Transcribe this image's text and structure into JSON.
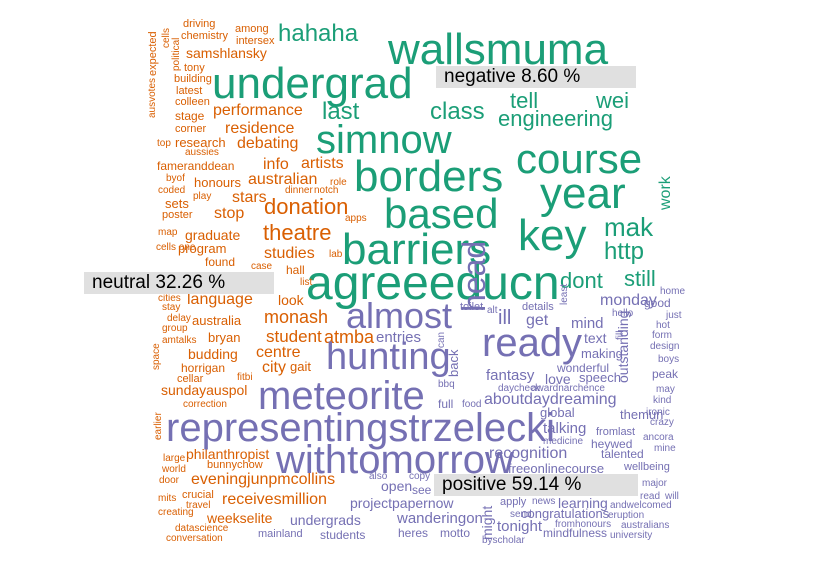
{
  "colors": {
    "negative": "#1b9e77",
    "neutral": "#d95f02",
    "positive": "#7570b3",
    "label_bg": "#e0e0e0"
  },
  "labels": {
    "negative": "negative 8.60 %",
    "neutral": "neutral 32.26 %",
    "positive": "positive 59.14 %"
  },
  "words": [
    {
      "t": "wallsmuma",
      "g": "negative"
    },
    {
      "t": "undergrad",
      "g": "negative"
    },
    {
      "t": "hahaha",
      "g": "negative"
    },
    {
      "t": "simnow",
      "g": "negative"
    },
    {
      "t": "borders",
      "g": "negative"
    },
    {
      "t": "course",
      "g": "negative"
    },
    {
      "t": "year",
      "g": "negative"
    },
    {
      "t": "based",
      "g": "negative"
    },
    {
      "t": "key",
      "g": "negative"
    },
    {
      "t": "barriers",
      "g": "negative"
    },
    {
      "t": "agreeeducn",
      "g": "negative"
    },
    {
      "t": "class",
      "g": "negative"
    },
    {
      "t": "engineering",
      "g": "negative"
    },
    {
      "t": "tell",
      "g": "negative"
    },
    {
      "t": "wei",
      "g": "negative"
    },
    {
      "t": "last",
      "g": "negative"
    },
    {
      "t": "mak",
      "g": "negative"
    },
    {
      "t": "http",
      "g": "negative"
    },
    {
      "t": "work",
      "g": "negative"
    },
    {
      "t": "dont",
      "g": "negative"
    },
    {
      "t": "still",
      "g": "negative"
    },
    {
      "t": "driving",
      "g": "neutral"
    },
    {
      "t": "among",
      "g": "neutral"
    },
    {
      "t": "chemistry",
      "g": "neutral"
    },
    {
      "t": "intersex",
      "g": "neutral"
    },
    {
      "t": "samshlansky",
      "g": "neutral"
    },
    {
      "t": "cells",
      "g": "neutral"
    },
    {
      "t": "expected",
      "g": "neutral"
    },
    {
      "t": "political",
      "g": "neutral"
    },
    {
      "t": "tony",
      "g": "neutral"
    },
    {
      "t": "building",
      "g": "neutral"
    },
    {
      "t": "latest",
      "g": "neutral"
    },
    {
      "t": "colleen",
      "g": "neutral"
    },
    {
      "t": "performance",
      "g": "neutral"
    },
    {
      "t": "ausvotes",
      "g": "neutral"
    },
    {
      "t": "stage",
      "g": "neutral"
    },
    {
      "t": "residence",
      "g": "neutral"
    },
    {
      "t": "corner",
      "g": "neutral"
    },
    {
      "t": "debating",
      "g": "neutral"
    },
    {
      "t": "top",
      "g": "neutral"
    },
    {
      "t": "research",
      "g": "neutral"
    },
    {
      "t": "aussies",
      "g": "neutral"
    },
    {
      "t": "fameranddean",
      "g": "neutral"
    },
    {
      "t": "info",
      "g": "neutral"
    },
    {
      "t": "artists",
      "g": "neutral"
    },
    {
      "t": "honours",
      "g": "neutral"
    },
    {
      "t": "australian",
      "g": "neutral"
    },
    {
      "t": "role",
      "g": "neutral"
    },
    {
      "t": "byof",
      "g": "neutral"
    },
    {
      "t": "coded",
      "g": "neutral"
    },
    {
      "t": "play",
      "g": "neutral"
    },
    {
      "t": "stars",
      "g": "neutral"
    },
    {
      "t": "dinner",
      "g": "neutral"
    },
    {
      "t": "notch",
      "g": "neutral"
    },
    {
      "t": "donation",
      "g": "neutral"
    },
    {
      "t": "sets",
      "g": "neutral"
    },
    {
      "t": "poster",
      "g": "neutral"
    },
    {
      "t": "stop",
      "g": "neutral"
    },
    {
      "t": "apps",
      "g": "neutral"
    },
    {
      "t": "map",
      "g": "neutral"
    },
    {
      "t": "graduate",
      "g": "neutral"
    },
    {
      "t": "theatre",
      "g": "neutral"
    },
    {
      "t": "cells one",
      "g": "neutral"
    },
    {
      "t": "program",
      "g": "neutral"
    },
    {
      "t": "studies",
      "g": "neutral"
    },
    {
      "t": "lab",
      "g": "neutral"
    },
    {
      "t": "found",
      "g": "neutral"
    },
    {
      "t": "case",
      "g": "neutral"
    },
    {
      "t": "hall",
      "g": "neutral"
    },
    {
      "t": "list",
      "g": "neutral"
    },
    {
      "t": "cities",
      "g": "neutral"
    },
    {
      "t": "language",
      "g": "neutral"
    },
    {
      "t": "look",
      "g": "neutral"
    },
    {
      "t": "stay",
      "g": "neutral"
    },
    {
      "t": "delay",
      "g": "neutral"
    },
    {
      "t": "australia",
      "g": "neutral"
    },
    {
      "t": "monash",
      "g": "neutral"
    },
    {
      "t": "group",
      "g": "neutral"
    },
    {
      "t": "amtalks",
      "g": "neutral"
    },
    {
      "t": "bryan",
      "g": "neutral"
    },
    {
      "t": "student",
      "g": "neutral"
    },
    {
      "t": "atmba",
      "g": "neutral"
    },
    {
      "t": "space",
      "g": "neutral"
    },
    {
      "t": "budding",
      "g": "neutral"
    },
    {
      "t": "centre",
      "g": "neutral"
    },
    {
      "t": "horrigan",
      "g": "neutral"
    },
    {
      "t": "city",
      "g": "neutral"
    },
    {
      "t": "gait",
      "g": "neutral"
    },
    {
      "t": "cellar",
      "g": "neutral"
    },
    {
      "t": "fitbi",
      "g": "neutral"
    },
    {
      "t": "sundayauspol",
      "g": "neutral"
    },
    {
      "t": "correction",
      "g": "neutral"
    },
    {
      "t": "earlier",
      "g": "neutral"
    },
    {
      "t": "large",
      "g": "neutral"
    },
    {
      "t": "philanthropist",
      "g": "neutral"
    },
    {
      "t": "world",
      "g": "neutral"
    },
    {
      "t": "bunnychow",
      "g": "neutral"
    },
    {
      "t": "door",
      "g": "neutral"
    },
    {
      "t": "eveningjunpmcollins",
      "g": "neutral"
    },
    {
      "t": "mits",
      "g": "neutral"
    },
    {
      "t": "crucial",
      "g": "neutral"
    },
    {
      "t": "receivesmillion",
      "g": "neutral"
    },
    {
      "t": "travel",
      "g": "neutral"
    },
    {
      "t": "creating",
      "g": "neutral"
    },
    {
      "t": "weekselite",
      "g": "neutral"
    },
    {
      "t": "datascience",
      "g": "neutral"
    },
    {
      "t": "conversation",
      "g": "neutral"
    },
    {
      "t": "almost",
      "g": "positive"
    },
    {
      "t": "hunting",
      "g": "positive"
    },
    {
      "t": "head",
      "g": "positive"
    },
    {
      "t": "ready",
      "g": "positive"
    },
    {
      "t": "meteorite",
      "g": "positive"
    },
    {
      "t": "representingstrzelecki",
      "g": "positive"
    },
    {
      "t": "withtomorrow",
      "g": "positive"
    },
    {
      "t": "ill",
      "g": "positive"
    },
    {
      "t": "get",
      "g": "positive"
    },
    {
      "t": "toilet",
      "g": "positive"
    },
    {
      "t": "alt",
      "g": "positive"
    },
    {
      "t": "details",
      "g": "positive"
    },
    {
      "t": "least",
      "g": "positive"
    },
    {
      "t": "monday",
      "g": "positive"
    },
    {
      "t": "good",
      "g": "positive"
    },
    {
      "t": "hello",
      "g": "positive"
    },
    {
      "t": "home",
      "g": "positive"
    },
    {
      "t": "just",
      "g": "positive"
    },
    {
      "t": "hot",
      "g": "positive"
    },
    {
      "t": "form",
      "g": "positive"
    },
    {
      "t": "design",
      "g": "positive"
    },
    {
      "t": "boys",
      "g": "positive"
    },
    {
      "t": "peak",
      "g": "positive"
    },
    {
      "t": "may",
      "g": "positive"
    },
    {
      "t": "kind",
      "g": "positive"
    },
    {
      "t": "ironic",
      "g": "positive"
    },
    {
      "t": "crazy",
      "g": "positive"
    },
    {
      "t": "ancora",
      "g": "positive"
    },
    {
      "t": "mine",
      "g": "positive"
    },
    {
      "t": "major",
      "g": "positive"
    },
    {
      "t": "wellbeing",
      "g": "positive"
    },
    {
      "t": "read",
      "g": "positive"
    },
    {
      "t": "will",
      "g": "positive"
    },
    {
      "t": "andwelcomed",
      "g": "positive"
    },
    {
      "t": "eruption",
      "g": "positive"
    },
    {
      "t": "australians",
      "g": "positive"
    },
    {
      "t": "university",
      "g": "positive"
    },
    {
      "t": "entries",
      "g": "positive"
    },
    {
      "t": "can",
      "g": "positive"
    },
    {
      "t": "mind",
      "g": "positive"
    },
    {
      "t": "text",
      "g": "positive"
    },
    {
      "t": "fill",
      "g": "positive"
    },
    {
      "t": "wonderful",
      "g": "positive"
    },
    {
      "t": "making",
      "g": "positive"
    },
    {
      "t": "outstanding",
      "g": "positive"
    },
    {
      "t": "fantasy",
      "g": "positive"
    },
    {
      "t": "love",
      "g": "positive"
    },
    {
      "t": "speech",
      "g": "positive"
    },
    {
      "t": "back",
      "g": "positive"
    },
    {
      "t": "bbq",
      "g": "positive"
    },
    {
      "t": "day",
      "g": "positive"
    },
    {
      "t": "check",
      "g": "positive"
    },
    {
      "t": "awardnarchence",
      "g": "positive"
    },
    {
      "t": "aboutdaydreaming",
      "g": "positive"
    },
    {
      "t": "full",
      "g": "positive"
    },
    {
      "t": "food",
      "g": "positive"
    },
    {
      "t": "talking",
      "g": "positive"
    },
    {
      "t": "global",
      "g": "positive"
    },
    {
      "t": "themun",
      "g": "positive"
    },
    {
      "t": "medicine",
      "g": "positive"
    },
    {
      "t": "heywed",
      "g": "positive"
    },
    {
      "t": "fromlast",
      "g": "positive"
    },
    {
      "t": "recognition",
      "g": "positive"
    },
    {
      "t": "talented",
      "g": "positive"
    },
    {
      "t": "freeonlinecourse",
      "g": "positive"
    },
    {
      "t": "also",
      "g": "positive"
    },
    {
      "t": "copy",
      "g": "positive"
    },
    {
      "t": "open",
      "g": "positive"
    },
    {
      "t": "see",
      "g": "positive"
    },
    {
      "t": "projectpapernow",
      "g": "positive"
    },
    {
      "t": "apply",
      "g": "positive"
    },
    {
      "t": "news",
      "g": "positive"
    },
    {
      "t": "learning",
      "g": "positive"
    },
    {
      "t": "send",
      "g": "positive"
    },
    {
      "t": "congratulations",
      "g": "positive"
    },
    {
      "t": "undergrads",
      "g": "positive"
    },
    {
      "t": "wanderingon",
      "g": "positive"
    },
    {
      "t": "might",
      "g": "positive"
    },
    {
      "t": "tonight",
      "g": "positive"
    },
    {
      "t": "fromhonours",
      "g": "positive"
    },
    {
      "t": "mainland",
      "g": "positive"
    },
    {
      "t": "students",
      "g": "positive"
    },
    {
      "t": "heres",
      "g": "positive"
    },
    {
      "t": "motto",
      "g": "positive"
    },
    {
      "t": "byscholar",
      "g": "positive"
    },
    {
      "t": "mindfulness",
      "g": "positive"
    }
  ]
}
